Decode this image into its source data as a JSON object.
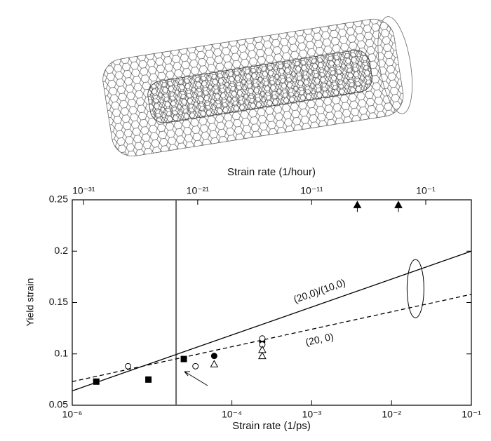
{
  "chart_data": {
    "type": "scatter",
    "x_label": "Strain rate (1/ps)",
    "x2_label": "Strain rate (1/hour)",
    "y_label": "Yield strain",
    "xscale": "log",
    "xlim": [
      1e-06,
      0.1
    ],
    "xticks": [
      {
        "value": 1e-06,
        "label": "10⁻⁶"
      },
      {
        "value": 0.0001,
        "label": "10⁻⁴"
      },
      {
        "value": 0.001,
        "label": "10⁻³"
      },
      {
        "value": 0.01,
        "label": "10⁻²"
      },
      {
        "value": 0.1,
        "label": "10⁻¹"
      }
    ],
    "x2lim": [
      1e-32,
      1000.0
    ],
    "x2ticks": [
      {
        "value": 1e-31,
        "label": "10⁻³¹"
      },
      {
        "value": 1e-21,
        "label": "10⁻²¹"
      },
      {
        "value": 1e-11,
        "label": "10⁻¹¹"
      },
      {
        "value": 0.1,
        "label": "10⁻¹"
      }
    ],
    "ylim": [
      0.05,
      0.25
    ],
    "yticks": [
      0.05,
      0.1,
      0.15,
      0.2,
      0.25
    ],
    "vline": 2e-05,
    "series": [
      {
        "marker": "square",
        "filled": true,
        "color": "#000",
        "x": [
          2e-06,
          9e-06,
          2.5e-05
        ],
        "values": [
          0.073,
          0.075,
          0.095
        ]
      },
      {
        "marker": "circle",
        "filled": true,
        "color": "#000",
        "x": [
          6e-05,
          0.00024
        ],
        "values": [
          0.098,
          0.112
        ]
      },
      {
        "marker": "circle",
        "filled": false,
        "color": "#000",
        "x": [
          5e-06,
          3.5e-05,
          0.00024,
          0.00024
        ],
        "values": [
          0.088,
          0.088,
          0.115,
          0.109
        ]
      },
      {
        "marker": "triangle",
        "filled": false,
        "color": "#000",
        "x": [
          6e-05,
          0.00024,
          0.00024
        ],
        "values": [
          0.09,
          0.098,
          0.104
        ]
      },
      {
        "marker": "triangle",
        "filled": true,
        "color": "#000",
        "axis": "x2",
        "x": [
          1e-07,
          0.0004
        ],
        "values": [
          0.245,
          0.245
        ]
      }
    ],
    "fits": [
      {
        "name": "(20,0)/(10,0)",
        "dashed": false,
        "x": [
          1e-06,
          0.1
        ],
        "values": [
          0.064,
          0.2
        ]
      },
      {
        "name": "(20, 0)",
        "dashed": true,
        "x": [
          1e-06,
          0.1
        ],
        "values": [
          0.073,
          0.158
        ]
      }
    ]
  }
}
